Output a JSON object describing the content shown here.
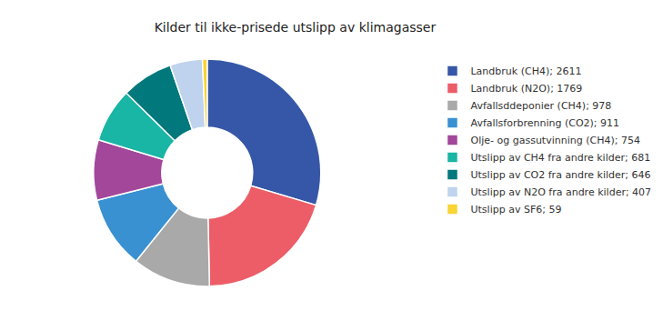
{
  "chart_data": {
    "type": "pie",
    "title": "Kilder til ikke-prisede utslipp av klimagasser",
    "categories": [
      "Landbruk (CH4); 2611",
      "Landbruk (N2O); 1769",
      "Avfallsddeponier (CH4); 978",
      "Avfallsforbrenning (CO2); 911",
      "Olje- og gassutvinning (CH4); 754",
      "Utslipp av CH4 fra andre kilder; 681",
      "Utslipp av CO2 fra andre kilder; 646",
      "Utslipp av N2O fra andre kilder; 407",
      "Utslipp av SF6; 59"
    ],
    "values": [
      2611,
      1769,
      978,
      911,
      754,
      681,
      646,
      407,
      59
    ],
    "colors": [
      "#3657a8",
      "#ec5d67",
      "#a9a9a9",
      "#3a91d1",
      "#a2479a",
      "#19b5a5",
      "#00787c",
      "#bfd3ee",
      "#f8d434"
    ],
    "legend": "right",
    "data_labels": false
  }
}
